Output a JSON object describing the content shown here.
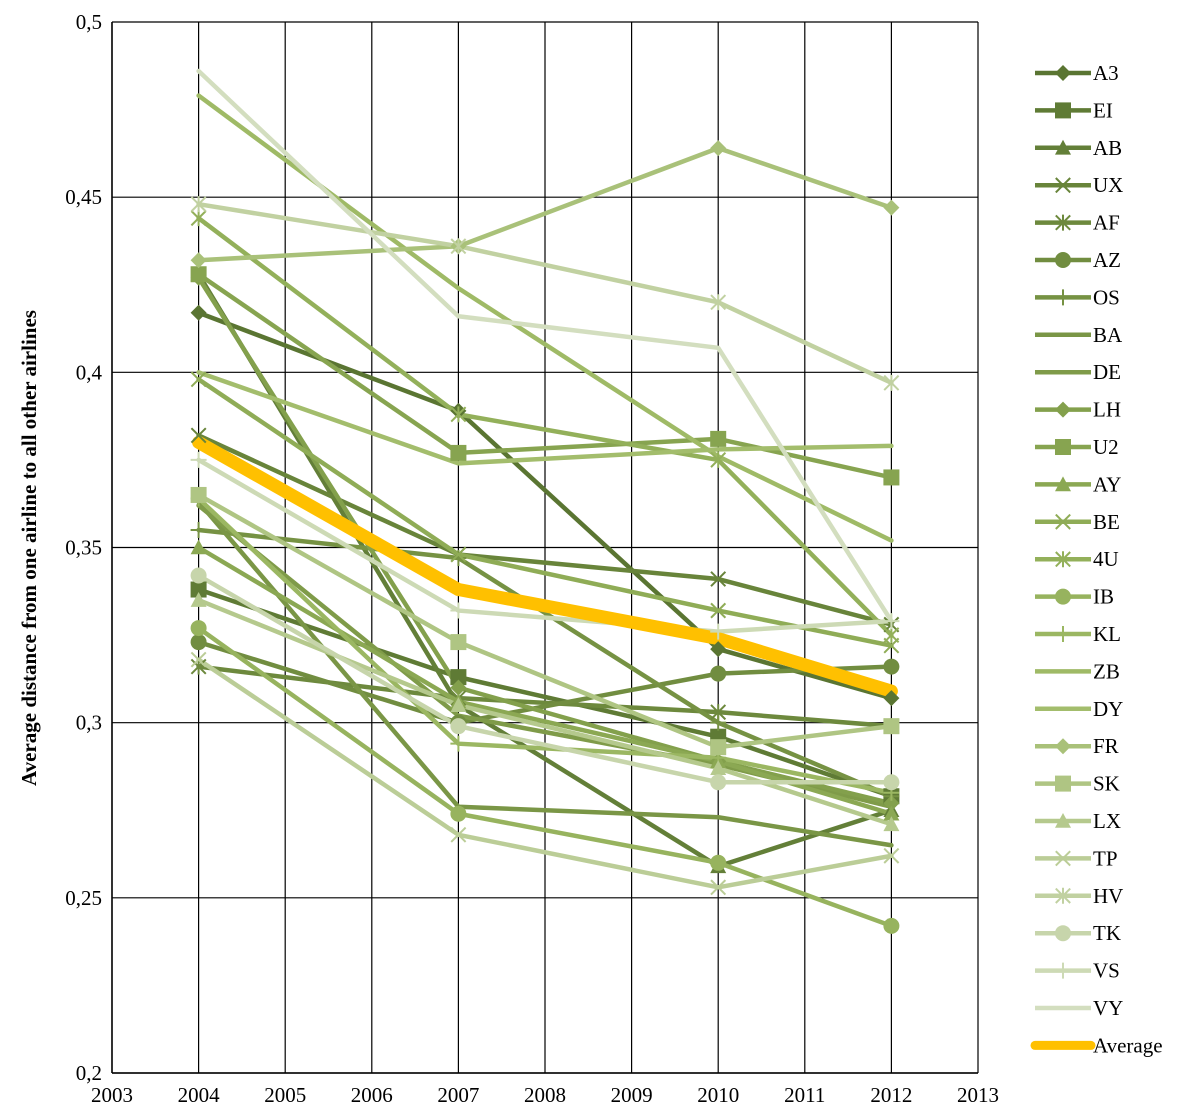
{
  "chart_data": {
    "type": "line",
    "title": "",
    "xlabel": "",
    "ylabel": "Average distance from one airline to all other airlines",
    "xlim": [
      2003,
      2013
    ],
    "ylim": [
      0.2,
      0.5
    ],
    "x_ticks": [
      2003,
      2004,
      2005,
      2006,
      2007,
      2008,
      2009,
      2010,
      2011,
      2012,
      2013
    ],
    "x_tick_labels": [
      "2003",
      "2004",
      "2005",
      "2006",
      "2007",
      "2008",
      "2009",
      "2010",
      "2011",
      "2012",
      "2013"
    ],
    "y_ticks": [
      0.2,
      0.25,
      0.3,
      0.35,
      0.4,
      0.45,
      0.5
    ],
    "y_tick_labels": [
      "0,2",
      "0,25",
      "0,3",
      "0,35",
      "0,4",
      "0,45",
      "0,5"
    ],
    "grid": true,
    "legend_position": "right",
    "x": [
      2004,
      2007,
      2010,
      2012
    ],
    "series": [
      {
        "name": "A3",
        "values": [
          0.417,
          0.389,
          0.321,
          0.307
        ],
        "color": "#5a7532",
        "marker": "diamond"
      },
      {
        "name": "EI",
        "values": [
          0.338,
          0.313,
          0.296,
          0.279
        ],
        "color": "#5f7b35",
        "marker": "square"
      },
      {
        "name": "AB",
        "values": [
          0.428,
          0.305,
          0.259,
          0.275
        ],
        "color": "#637f38",
        "marker": "triangle"
      },
      {
        "name": "UX",
        "values": [
          0.382,
          0.348,
          0.341,
          0.328
        ],
        "color": "#68843a",
        "marker": "x"
      },
      {
        "name": "AF",
        "values": [
          0.316,
          0.307,
          0.303,
          0.299
        ],
        "color": "#6d893d",
        "marker": "star"
      },
      {
        "name": "AZ",
        "values": [
          0.323,
          0.3,
          0.314,
          0.316
        ],
        "color": "#718d40",
        "marker": "circle"
      },
      {
        "name": "OS",
        "values": [
          0.355,
          0.347,
          0.3,
          0.279
        ],
        "color": "#769243",
        "marker": "plus"
      },
      {
        "name": "BA",
        "values": [
          0.363,
          0.276,
          0.273,
          0.265
        ],
        "color": "#7a9646",
        "marker": "none"
      },
      {
        "name": "DE",
        "values": [
          0.362,
          0.302,
          0.288,
          0.276
        ],
        "color": "#7f9b49",
        "marker": "none"
      },
      {
        "name": "LH",
        "values": [
          0.427,
          0.31,
          0.289,
          0.277
        ],
        "color": "#83a04c",
        "marker": "diamond"
      },
      {
        "name": "U2",
        "values": [
          0.428,
          0.377,
          0.381,
          0.37
        ],
        "color": "#87a450",
        "marker": "square"
      },
      {
        "name": "AY",
        "values": [
          0.35,
          0.306,
          0.289,
          0.274
        ],
        "color": "#8ba853",
        "marker": "triangle"
      },
      {
        "name": "BE",
        "values": [
          0.398,
          0.348,
          0.332,
          0.322
        ],
        "color": "#8fac56",
        "marker": "x"
      },
      {
        "name": "4U",
        "values": [
          0.444,
          0.388,
          0.375,
          0.325
        ],
        "color": "#93b05a",
        "marker": "star"
      },
      {
        "name": "IB",
        "values": [
          0.327,
          0.274,
          0.26,
          0.242
        ],
        "color": "#97b35e",
        "marker": "circle"
      },
      {
        "name": "KL",
        "values": [
          0.364,
          0.294,
          0.29,
          0.28
        ],
        "color": "#9bb762",
        "marker": "plus"
      },
      {
        "name": "ZB",
        "values": [
          0.479,
          0.424,
          0.376,
          0.352
        ],
        "color": "#9fba66",
        "marker": "none"
      },
      {
        "name": "DY",
        "values": [
          0.4,
          0.374,
          0.378,
          0.379
        ],
        "color": "#a3bd6c",
        "marker": "none"
      },
      {
        "name": "FR",
        "values": [
          0.432,
          0.436,
          0.464,
          0.447
        ],
        "color": "#a9c179",
        "marker": "diamond"
      },
      {
        "name": "SK",
        "values": [
          0.365,
          0.323,
          0.293,
          0.299
        ],
        "color": "#afc583",
        "marker": "square"
      },
      {
        "name": "LX",
        "values": [
          0.335,
          0.305,
          0.287,
          0.271
        ],
        "color": "#b5c98d",
        "marker": "triangle"
      },
      {
        "name": "TP",
        "values": [
          0.318,
          0.268,
          0.253,
          0.262
        ],
        "color": "#bbcd97",
        "marker": "x"
      },
      {
        "name": "HV",
        "values": [
          0.448,
          0.436,
          0.42,
          0.397
        ],
        "color": "#c1d1a1",
        "marker": "star"
      },
      {
        "name": "TK",
        "values": [
          0.342,
          0.299,
          0.283,
          0.283
        ],
        "color": "#c7d5ab",
        "marker": "circle"
      },
      {
        "name": "VS",
        "values": [
          0.375,
          0.332,
          0.326,
          0.329
        ],
        "color": "#cddab5",
        "marker": "plus"
      },
      {
        "name": "VY",
        "values": [
          0.486,
          0.416,
          0.407,
          0.329
        ],
        "color": "#d3debf",
        "marker": "none"
      },
      {
        "name": "Average",
        "values": [
          0.38,
          0.338,
          0.324,
          0.309
        ],
        "color": "#ffc000",
        "marker": "none",
        "bold": true
      }
    ]
  }
}
